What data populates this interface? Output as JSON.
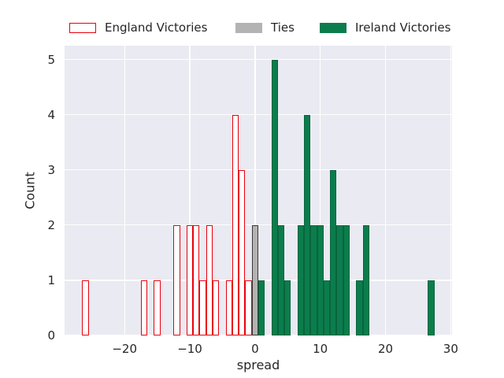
{
  "figure": {
    "background": "#ffffff",
    "plot_background": "#eaeaf2",
    "grid_color": "#ffffff",
    "text_color": "#262626"
  },
  "chart_data": {
    "type": "bar",
    "subtype": "histogram",
    "title": "",
    "xlabel": "spread",
    "ylabel": "Count",
    "grid": true,
    "legend_position": "top",
    "binwidth": 1,
    "xlim": [
      -29.2,
      30.2
    ],
    "ylim": [
      0,
      5.25
    ],
    "xticks": [
      -20,
      -10,
      0,
      10,
      20,
      30
    ],
    "xtick_labels": [
      "−20",
      "−10",
      "0",
      "10",
      "20",
      "30"
    ],
    "yticks": [
      0,
      1,
      2,
      3,
      4,
      5
    ],
    "ytick_labels": [
      "0",
      "1",
      "2",
      "3",
      "4",
      "5"
    ],
    "series": [
      {
        "name": "England Victories",
        "id": "england",
        "style": "outline",
        "fill": "#ffffff",
        "edge": "#e8000b",
        "linewidth": 1.2,
        "bins": [
          [
            -26,
            1
          ],
          [
            -17,
            1
          ],
          [
            -15,
            1
          ],
          [
            -12,
            2
          ],
          [
            -10,
            2
          ],
          [
            -9,
            2
          ],
          [
            -8,
            1
          ],
          [
            -7,
            2
          ],
          [
            -6,
            1
          ],
          [
            -4,
            1
          ],
          [
            -3,
            4
          ],
          [
            -2,
            3
          ],
          [
            -1,
            1
          ]
        ]
      },
      {
        "name": "Ties",
        "id": "ties",
        "style": "filled",
        "fill": "#b3b3b3",
        "edge": "#3a3a3a",
        "linewidth": 1.2,
        "bins": [
          [
            0,
            2
          ]
        ]
      },
      {
        "name": "Ireland Victories",
        "id": "ireland",
        "style": "filled",
        "fill": "#0b7d4c",
        "edge": "#09643d",
        "linewidth": 1,
        "bins": [
          [
            1,
            1
          ],
          [
            3,
            5
          ],
          [
            4,
            2
          ],
          [
            5,
            1
          ],
          [
            7,
            2
          ],
          [
            8,
            4
          ],
          [
            9,
            2
          ],
          [
            10,
            2
          ],
          [
            11,
            1
          ],
          [
            12,
            3
          ],
          [
            13,
            2
          ],
          [
            14,
            2
          ],
          [
            16,
            1
          ],
          [
            17,
            2
          ],
          [
            27,
            1
          ]
        ]
      }
    ]
  }
}
